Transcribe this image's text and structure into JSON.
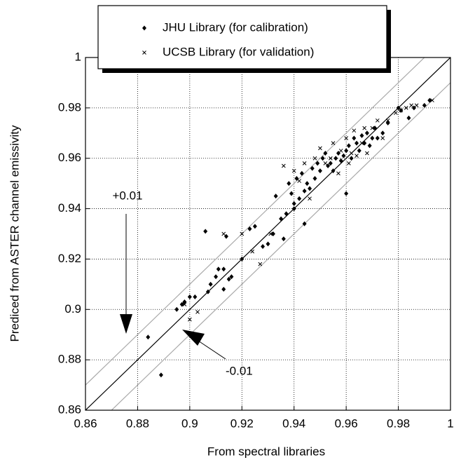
{
  "chart_data": {
    "type": "scatter",
    "x_label": "From spectral libraries",
    "y_label": "Prediced from ASTER channel emissivity",
    "xlim": [
      0.86,
      1
    ],
    "ylim": [
      0.86,
      1
    ],
    "xticks": [
      0.86,
      0.88,
      0.9,
      0.92,
      0.94,
      0.96,
      0.98,
      1
    ],
    "yticks": [
      0.86,
      0.88,
      0.9,
      0.92,
      0.94,
      0.96,
      0.98,
      1
    ],
    "grid": true,
    "legend": "top",
    "reference_lines": [
      {
        "offset": 0,
        "color": "#000000"
      },
      {
        "offset": 0.01,
        "label": "+0.01",
        "color": "#aaaaaa"
      },
      {
        "offset": -0.01,
        "label": "-0.01",
        "color": "#aaaaaa"
      }
    ],
    "series": [
      {
        "name": "JHU Library (for calibration)",
        "color": "#000000",
        "marker": "diamond",
        "x": [
          0.884,
          0.889,
          0.895,
          0.897,
          0.898,
          0.9,
          0.902,
          0.906,
          0.907,
          0.908,
          0.91,
          0.911,
          0.913,
          0.913,
          0.914,
          0.915,
          0.916,
          0.92,
          0.923,
          0.925,
          0.928,
          0.93,
          0.932,
          0.933,
          0.935,
          0.936,
          0.937,
          0.938,
          0.939,
          0.94,
          0.94,
          0.941,
          0.942,
          0.943,
          0.944,
          0.944,
          0.945,
          0.946,
          0.947,
          0.948,
          0.949,
          0.95,
          0.951,
          0.952,
          0.953,
          0.954,
          0.955,
          0.956,
          0.957,
          0.958,
          0.959,
          0.96,
          0.96,
          0.961,
          0.962,
          0.963,
          0.964,
          0.965,
          0.966,
          0.967,
          0.968,
          0.969,
          0.97,
          0.971,
          0.972,
          0.974,
          0.976,
          0.98,
          0.981,
          0.984,
          0.986,
          0.99,
          0.992
        ],
        "values": [
          0.889,
          0.874,
          0.9,
          0.902,
          0.903,
          0.905,
          0.905,
          0.931,
          0.907,
          0.91,
          0.913,
          0.916,
          0.916,
          0.908,
          0.929,
          0.912,
          0.913,
          0.92,
          0.932,
          0.933,
          0.925,
          0.926,
          0.93,
          0.945,
          0.936,
          0.928,
          0.938,
          0.95,
          0.946,
          0.942,
          0.94,
          0.952,
          0.944,
          0.954,
          0.947,
          0.934,
          0.95,
          0.948,
          0.956,
          0.952,
          0.958,
          0.955,
          0.96,
          0.962,
          0.957,
          0.958,
          0.955,
          0.96,
          0.962,
          0.959,
          0.961,
          0.946,
          0.963,
          0.965,
          0.96,
          0.968,
          0.966,
          0.963,
          0.969,
          0.966,
          0.97,
          0.965,
          0.968,
          0.972,
          0.968,
          0.97,
          0.974,
          0.98,
          0.979,
          0.976,
          0.98,
          0.981,
          0.983
        ]
      },
      {
        "name": "UCSB Library (for validation)",
        "color": "#000000",
        "marker": "cross",
        "x": [
          0.898,
          0.9,
          0.903,
          0.913,
          0.92,
          0.924,
          0.927,
          0.931,
          0.936,
          0.94,
          0.942,
          0.944,
          0.946,
          0.948,
          0.95,
          0.952,
          0.954,
          0.955,
          0.957,
          0.958,
          0.96,
          0.961,
          0.962,
          0.963,
          0.964,
          0.966,
          0.967,
          0.968,
          0.97,
          0.972,
          0.974,
          0.976,
          0.979,
          0.981,
          0.983,
          0.985,
          0.987,
          0.993
        ],
        "values": [
          0.902,
          0.896,
          0.899,
          0.93,
          0.93,
          0.923,
          0.918,
          0.93,
          0.957,
          0.955,
          0.951,
          0.958,
          0.944,
          0.96,
          0.964,
          0.958,
          0.96,
          0.966,
          0.954,
          0.963,
          0.968,
          0.958,
          0.962,
          0.971,
          0.961,
          0.966,
          0.972,
          0.962,
          0.972,
          0.975,
          0.968,
          0.975,
          0.978,
          0.979,
          0.98,
          0.981,
          0.981,
          0.983
        ]
      }
    ]
  }
}
